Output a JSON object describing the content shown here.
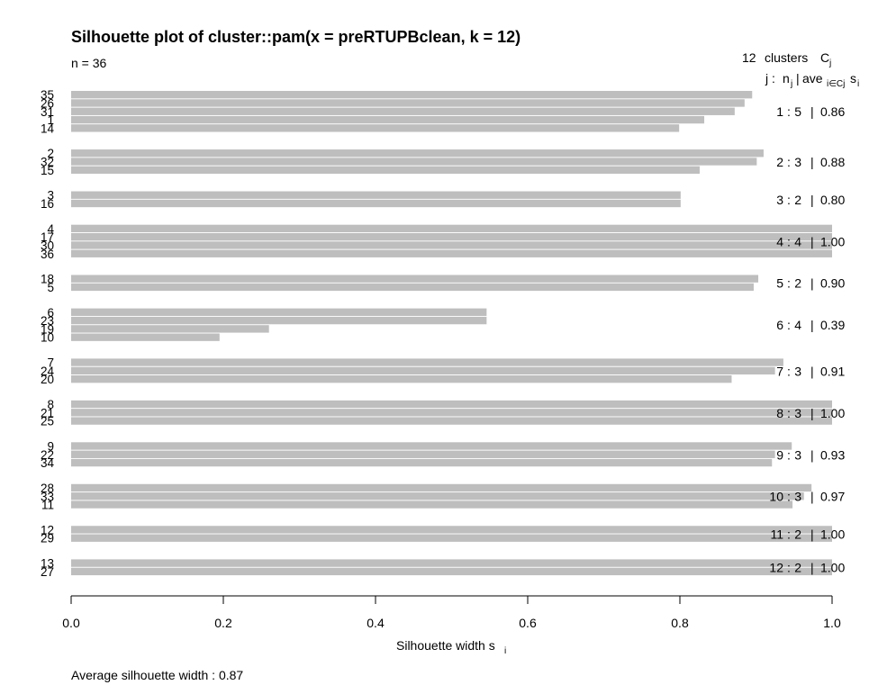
{
  "chart_data": {
    "type": "bar",
    "orientation": "horizontal",
    "title": "Silhouette plot of cluster::pam(x = preRTUPBclean, k = 12)",
    "n_label": "n = 36",
    "header": {
      "clusters_count": "12",
      "clusters_word": "clusters",
      "cj_main": "C",
      "cj_sub": "j",
      "line2_j": "j :",
      "line2_n": "n",
      "line2_n_sub": "j",
      "line2_bar": "|",
      "line2_ave": "ave",
      "line2_ave_sub": "i∈Cj",
      "line2_s": "s",
      "line2_s_sub": "i"
    },
    "xlabel_main": "Silhouette width s",
    "xlabel_sub": "i",
    "average_label": "Average silhouette width :  0.87",
    "xlim": [
      0,
      1
    ],
    "xticks": [
      "0.0",
      "0.2",
      "0.4",
      "0.6",
      "0.8",
      "1.0"
    ],
    "bar_color": "#bebebe",
    "clusters": [
      {
        "j": "1",
        "n": "5",
        "ave": "0.86",
        "observations": [
          {
            "label": "35",
            "value": 0.895
          },
          {
            "label": "26",
            "value": 0.885
          },
          {
            "label": "31",
            "value": 0.872
          },
          {
            "label": "1",
            "value": 0.832
          },
          {
            "label": "14",
            "value": 0.799
          }
        ]
      },
      {
        "j": "2",
        "n": "3",
        "ave": "0.88",
        "observations": [
          {
            "label": "2",
            "value": 0.91
          },
          {
            "label": "32",
            "value": 0.901
          },
          {
            "label": "15",
            "value": 0.826
          }
        ]
      },
      {
        "j": "3",
        "n": "2",
        "ave": "0.80",
        "observations": [
          {
            "label": "3",
            "value": 0.801
          },
          {
            "label": "16",
            "value": 0.801
          }
        ]
      },
      {
        "j": "4",
        "n": "4",
        "ave": "1.00",
        "observations": [
          {
            "label": "4",
            "value": 1.0
          },
          {
            "label": "17",
            "value": 1.0
          },
          {
            "label": "30",
            "value": 1.0
          },
          {
            "label": "36",
            "value": 1.0
          }
        ]
      },
      {
        "j": "5",
        "n": "2",
        "ave": "0.90",
        "observations": [
          {
            "label": "18",
            "value": 0.903
          },
          {
            "label": "5",
            "value": 0.897
          }
        ]
      },
      {
        "j": "6",
        "n": "4",
        "ave": "0.39",
        "observations": [
          {
            "label": "6",
            "value": 0.546
          },
          {
            "label": "23",
            "value": 0.546
          },
          {
            "label": "19",
            "value": 0.26
          },
          {
            "label": "10",
            "value": 0.195
          }
        ]
      },
      {
        "j": "7",
        "n": "3",
        "ave": "0.91",
        "observations": [
          {
            "label": "7",
            "value": 0.936
          },
          {
            "label": "24",
            "value": 0.925
          },
          {
            "label": "20",
            "value": 0.868
          }
        ]
      },
      {
        "j": "8",
        "n": "3",
        "ave": "1.00",
        "observations": [
          {
            "label": "8",
            "value": 1.0
          },
          {
            "label": "21",
            "value": 1.0
          },
          {
            "label": "25",
            "value": 1.0
          }
        ]
      },
      {
        "j": "9",
        "n": "3",
        "ave": "0.93",
        "observations": [
          {
            "label": "9",
            "value": 0.947
          },
          {
            "label": "22",
            "value": 0.925
          },
          {
            "label": "34",
            "value": 0.921
          }
        ]
      },
      {
        "j": "10",
        "n": "3",
        "ave": "0.97",
        "observations": [
          {
            "label": "28",
            "value": 0.973
          },
          {
            "label": "33",
            "value": 0.963
          },
          {
            "label": "11",
            "value": 0.948
          }
        ]
      },
      {
        "j": "11",
        "n": "2",
        "ave": "1.00",
        "observations": [
          {
            "label": "12",
            "value": 1.0
          },
          {
            "label": "29",
            "value": 1.0
          }
        ]
      },
      {
        "j": "12",
        "n": "2",
        "ave": "1.00",
        "observations": [
          {
            "label": "13",
            "value": 1.0
          },
          {
            "label": "27",
            "value": 1.0
          }
        ]
      }
    ]
  }
}
